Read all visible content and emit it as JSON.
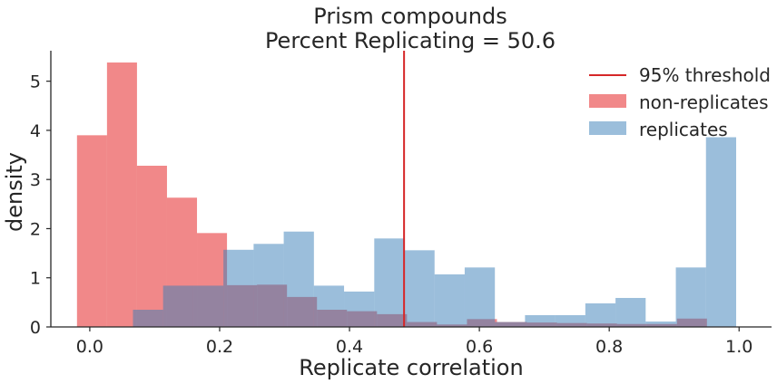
{
  "chart_data": {
    "type": "bar",
    "title": "Prism compounds",
    "subtitle": "Percent Replicating = 50.6",
    "xlabel": "Replicate correlation",
    "ylabel": "density",
    "xlim": [
      -0.06,
      1.05
    ],
    "ylim": [
      0,
      5.62
    ],
    "xticks": [
      "0.0",
      "0.2",
      "0.4",
      "0.6",
      "0.8",
      "1.0"
    ],
    "yticks": [
      "0",
      "1",
      "2",
      "3",
      "4",
      "5"
    ],
    "legend_position": "top-right",
    "threshold": {
      "name": "95% threshold",
      "x": 0.484,
      "color": "#d62728"
    },
    "series": [
      {
        "name": "non-replicates",
        "color": "#e8393a",
        "bin_edges": [
          -0.0197,
          0.0265,
          0.0727,
          0.1189,
          0.1651,
          0.2113,
          0.2575,
          0.3037,
          0.3499,
          0.3961,
          0.4423,
          0.4885,
          0.5347,
          0.5809,
          0.6271,
          0.6733,
          0.7195,
          0.7657,
          0.8119,
          0.8581,
          0.9043,
          0.9505
        ],
        "values": [
          3.9,
          5.38,
          3.28,
          2.63,
          1.91,
          0.85,
          0.86,
          0.61,
          0.35,
          0.32,
          0.26,
          0.1,
          0.05,
          0.16,
          0.1,
          0.09,
          0.08,
          0.07,
          0.06,
          0.06,
          0.17
        ]
      },
      {
        "name": "replicates",
        "color": "#377eb8",
        "bin_edges": [
          0.0665,
          0.1129,
          0.1594,
          0.2058,
          0.2523,
          0.2987,
          0.3452,
          0.3916,
          0.4381,
          0.4845,
          0.531,
          0.5774,
          0.6239,
          0.6703,
          0.7168,
          0.7632,
          0.8097,
          0.8561,
          0.9026,
          0.949,
          0.9955
        ],
        "values": [
          0.35,
          0.84,
          0.84,
          1.57,
          1.69,
          1.94,
          0.84,
          0.72,
          1.8,
          1.56,
          1.07,
          1.21,
          0.1,
          0.24,
          0.24,
          0.48,
          0.59,
          0.11,
          1.21,
          3.86
        ]
      }
    ]
  }
}
